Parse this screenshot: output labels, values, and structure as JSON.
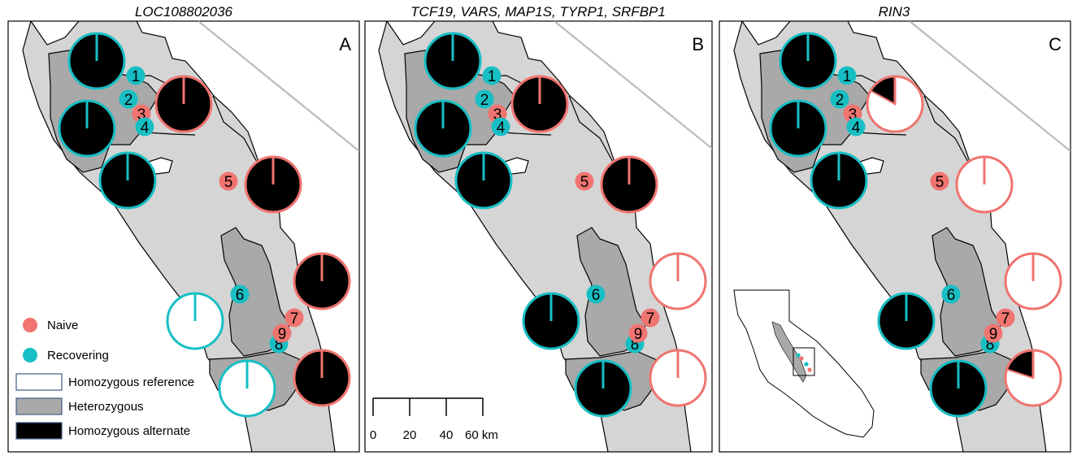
{
  "colors": {
    "naive": "#f07470",
    "recovering": "#17bfc4",
    "homozygous_reference": "#ffffff",
    "heterozygous": "#a9a9a9",
    "homozygous_alternate": "#000000",
    "range_fill": "#d5d5d5",
    "park_fill": "#a9a9a9",
    "border_line": "#bbbbbb"
  },
  "panels": [
    {
      "title": "LOC108802036",
      "label": "A",
      "pies": [
        {
          "site": "recovering-north-1",
          "group": "recovering",
          "fractions": {
            "ref": 0,
            "het": 0,
            "alt": 1
          }
        },
        {
          "site": "naive-3",
          "group": "naive",
          "fractions": {
            "ref": 0,
            "het": 0,
            "alt": 1
          }
        },
        {
          "site": "recovering-north-2",
          "group": "recovering",
          "fractions": {
            "ref": 0,
            "het": 0,
            "alt": 1
          }
        },
        {
          "site": "recovering-north-3",
          "group": "recovering",
          "fractions": {
            "ref": 0,
            "het": 0,
            "alt": 1
          }
        },
        {
          "site": "naive-5",
          "group": "naive",
          "fractions": {
            "ref": 0,
            "het": 0,
            "alt": 1
          }
        },
        {
          "site": "naive-7",
          "group": "naive",
          "fractions": {
            "ref": 0,
            "het": 0,
            "alt": 1
          }
        },
        {
          "site": "recovering-6",
          "group": "recovering",
          "fractions": {
            "ref": 1,
            "het": 0,
            "alt": 0
          }
        },
        {
          "site": "recovering-8",
          "group": "recovering",
          "fractions": {
            "ref": 1,
            "het": 0,
            "alt": 0
          }
        },
        {
          "site": "naive-9",
          "group": "naive",
          "fractions": {
            "ref": 0,
            "het": 0,
            "alt": 1
          }
        }
      ]
    },
    {
      "title": "TCF19, VARS, MAP1S, TYRP1, SRFBP1",
      "label": "B",
      "pies": [
        {
          "site": "recovering-north-1",
          "group": "recovering",
          "fractions": {
            "ref": 0,
            "het": 0,
            "alt": 1
          }
        },
        {
          "site": "naive-3",
          "group": "naive",
          "fractions": {
            "ref": 0,
            "het": 0,
            "alt": 1
          }
        },
        {
          "site": "recovering-north-2",
          "group": "recovering",
          "fractions": {
            "ref": 0,
            "het": 0,
            "alt": 1
          }
        },
        {
          "site": "recovering-north-3",
          "group": "recovering",
          "fractions": {
            "ref": 0,
            "het": 0,
            "alt": 1
          }
        },
        {
          "site": "naive-5",
          "group": "naive",
          "fractions": {
            "ref": 0,
            "het": 0,
            "alt": 1
          }
        },
        {
          "site": "naive-7",
          "group": "naive",
          "fractions": {
            "ref": 1,
            "het": 0,
            "alt": 0
          }
        },
        {
          "site": "recovering-6",
          "group": "recovering",
          "fractions": {
            "ref": 0,
            "het": 0,
            "alt": 1
          }
        },
        {
          "site": "recovering-8",
          "group": "recovering",
          "fractions": {
            "ref": 0,
            "het": 0,
            "alt": 1
          }
        },
        {
          "site": "naive-9",
          "group": "naive",
          "fractions": {
            "ref": 1,
            "het": 0,
            "alt": 0
          }
        }
      ]
    },
    {
      "title": "RIN3",
      "label": "C",
      "pies": [
        {
          "site": "recovering-north-1",
          "group": "recovering",
          "fractions": {
            "ref": 0,
            "het": 0,
            "alt": 1
          }
        },
        {
          "site": "naive-3",
          "group": "naive",
          "fractions": {
            "ref": 0.83,
            "het": 0,
            "alt": 0.17
          }
        },
        {
          "site": "recovering-north-2",
          "group": "recovering",
          "fractions": {
            "ref": 0,
            "het": 0,
            "alt": 1
          }
        },
        {
          "site": "recovering-north-3",
          "group": "recovering",
          "fractions": {
            "ref": 0,
            "het": 0,
            "alt": 1
          }
        },
        {
          "site": "naive-5",
          "group": "naive",
          "fractions": {
            "ref": 1,
            "het": 0,
            "alt": 0
          }
        },
        {
          "site": "naive-7",
          "group": "naive",
          "fractions": {
            "ref": 1,
            "het": 0,
            "alt": 0
          }
        },
        {
          "site": "recovering-6",
          "group": "recovering",
          "fractions": {
            "ref": 0,
            "het": 0,
            "alt": 1
          }
        },
        {
          "site": "recovering-8",
          "group": "recovering",
          "fractions": {
            "ref": 0,
            "het": 0,
            "alt": 1
          }
        },
        {
          "site": "naive-9",
          "group": "naive",
          "fractions": {
            "ref": 0.8,
            "het": 0,
            "alt": 0.2
          }
        }
      ]
    }
  ],
  "sites": [
    {
      "num": "1",
      "group": "recovering"
    },
    {
      "num": "2",
      "group": "recovering"
    },
    {
      "num": "3",
      "group": "naive"
    },
    {
      "num": "4",
      "group": "recovering"
    },
    {
      "num": "5",
      "group": "naive"
    },
    {
      "num": "6",
      "group": "recovering"
    },
    {
      "num": "7",
      "group": "naive"
    },
    {
      "num": "8",
      "group": "recovering"
    },
    {
      "num": "9",
      "group": "naive"
    }
  ],
  "legend": {
    "naive": "Naive",
    "recovering": "Recovering",
    "homozygous_reference": "Homozygous reference",
    "heterozygous": "Heterozygous",
    "homozygous_alternate": "Homozygous alternate"
  },
  "scale_bar": {
    "ticks": [
      "0",
      "20",
      "40",
      "60 km"
    ]
  }
}
